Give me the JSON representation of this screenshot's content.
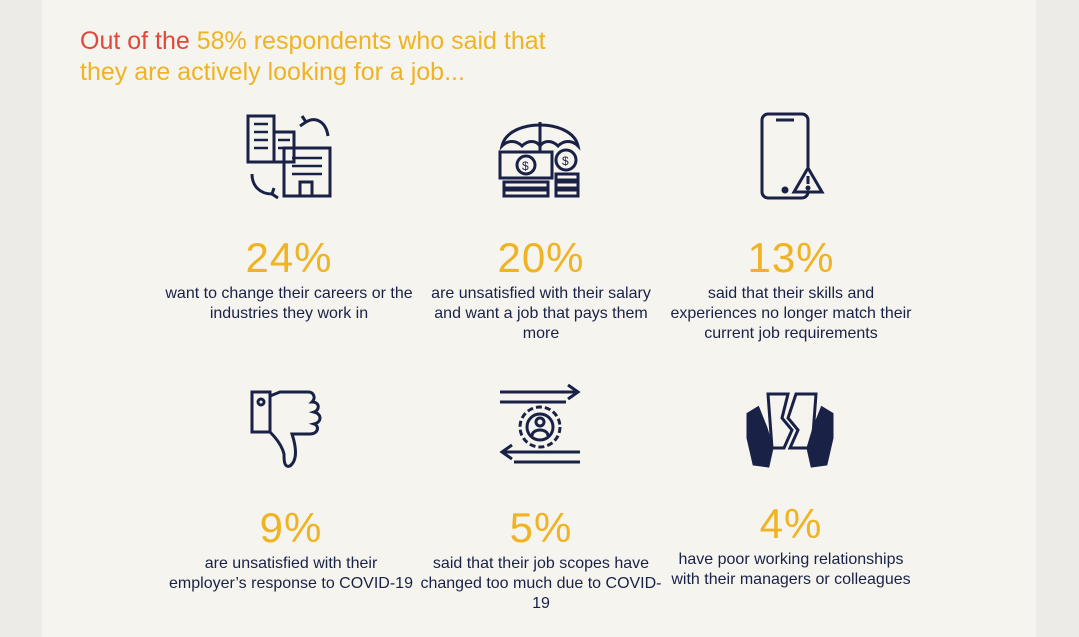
{
  "headline": {
    "part1": "Out of the ",
    "highlight": "58% respondents who said that",
    "line2": "they are actively looking for a job..."
  },
  "colors": {
    "accent_red": "#e0483b",
    "accent_yellow": "#f0b323",
    "navy": "#1a2147",
    "background": "#f5f4ef"
  },
  "stats": [
    {
      "percent": "24%",
      "description": "want to change their careers or the industries they work in",
      "icon": "buildings-swap-icon"
    },
    {
      "percent": "20%",
      "description": "are unsatisfied with their salary and want a job that pays them more",
      "icon": "money-umbrella-icon"
    },
    {
      "percent": "13%",
      "description": "said that their skills and experiences no longer match their current job requirements",
      "icon": "phone-warning-icon"
    },
    {
      "percent": "9%",
      "description": "are unsatisfied with their employer’s response to COVID-19",
      "icon": "thumbs-down-icon"
    },
    {
      "percent": "5%",
      "description": "said that their job scopes have changed too much due to COVID-19",
      "icon": "gear-person-arrows-icon"
    },
    {
      "percent": "4%",
      "description": "have poor working relationships with their managers or colleagues",
      "icon": "broken-heart-hands-icon"
    }
  ]
}
